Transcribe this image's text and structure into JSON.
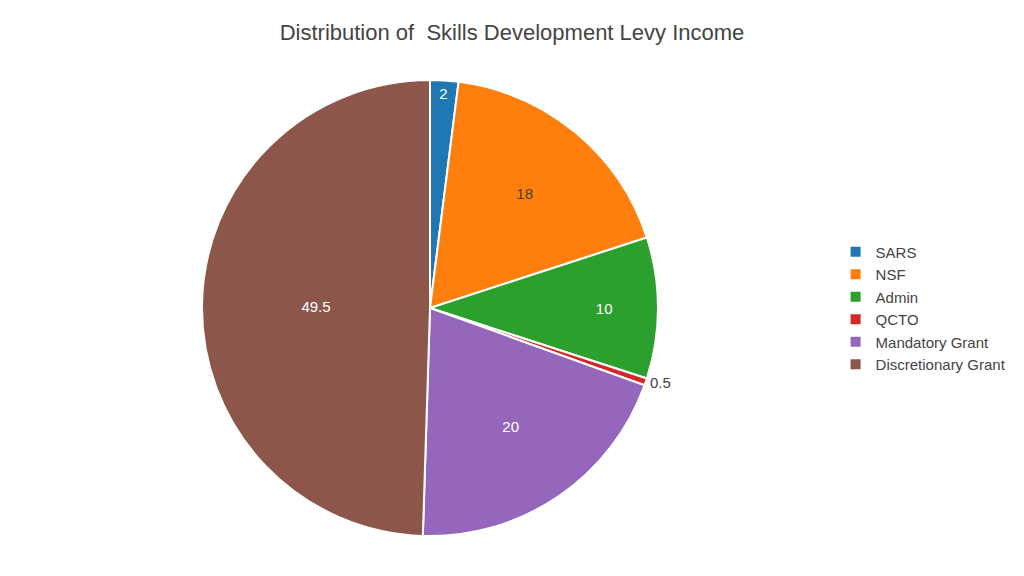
{
  "chart_data": {
    "type": "pie",
    "title": "Distribution of  Skills Development Levy Income",
    "categories": [
      "SARS",
      "NSF",
      "Admin",
      "QCTO",
      "Mandatory Grant",
      "Discretionary Grant"
    ],
    "values": [
      2,
      18,
      10,
      0.5,
      20,
      49.5
    ],
    "data_labels": true,
    "legend": "right"
  }
}
